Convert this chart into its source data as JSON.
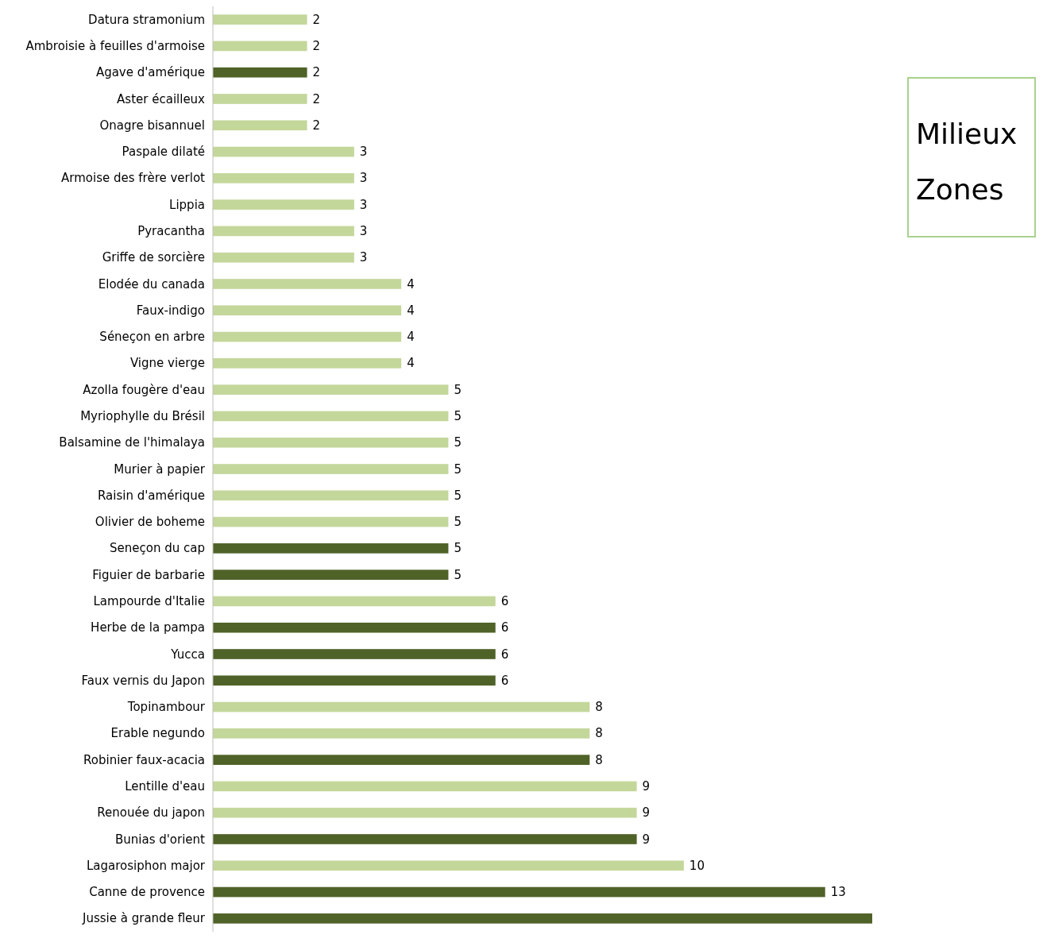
{
  "chart_data": {
    "type": "bar",
    "orientation": "horizontal",
    "categories": [
      "Datura stramonium",
      "Ambroisie à feuilles d'armoise",
      "Agave d'amérique",
      "Aster écailleux",
      "Onagre bisannuel",
      "Paspale dilaté",
      "Armoise des frère verlot",
      "Lippia",
      "Pyracantha",
      "Griffe de sorcière",
      "Elodée du canada",
      "Faux-indigo",
      "Séneçon en arbre",
      "Vigne vierge",
      "Azolla fougère d'eau",
      "Myriophylle du Brésil",
      "Balsamine de l'himalaya",
      "Murier à papier",
      "Raisin d'amérique",
      "Olivier de boheme",
      "Seneçon du cap",
      "Figuier de barbarie",
      "Lampourde d'Italie",
      "Herbe de la pampa",
      "Yucca",
      "Faux vernis du Japon",
      "Topinambour",
      "Erable negundo",
      "Robinier faux-acacia",
      "Lentille d'eau",
      "Renouée du japon",
      "Bunias d'orient",
      "Lagarosiphon major",
      "Canne de provence",
      "Jussie à grande fleur"
    ],
    "values": [
      2,
      2,
      2,
      2,
      2,
      3,
      3,
      3,
      3,
      3,
      4,
      4,
      4,
      4,
      5,
      5,
      5,
      5,
      5,
      5,
      5,
      5,
      6,
      6,
      6,
      6,
      8,
      8,
      8,
      9,
      9,
      9,
      10,
      13,
      14
    ],
    "value_labels": [
      "2",
      "2",
      "2",
      "2",
      "2",
      "3",
      "3",
      "3",
      "3",
      "3",
      "4",
      "4",
      "4",
      "4",
      "5",
      "5",
      "5",
      "5",
      "5",
      "5",
      "5",
      "5",
      "6",
      "6",
      "6",
      "6",
      "8",
      "8",
      "8",
      "9",
      "9",
      "9",
      "10",
      "13",
      null
    ],
    "colors": [
      "#c4d79b",
      "#c4d79b",
      "#4f6228",
      "#c4d79b",
      "#c4d79b",
      "#c4d79b",
      "#c4d79b",
      "#c4d79b",
      "#c4d79b",
      "#c4d79b",
      "#c4d79b",
      "#c4d79b",
      "#c4d79b",
      "#c4d79b",
      "#c4d79b",
      "#c4d79b",
      "#c4d79b",
      "#c4d79b",
      "#c4d79b",
      "#c4d79b",
      "#4f6228",
      "#4f6228",
      "#c4d79b",
      "#4f6228",
      "#4f6228",
      "#4f6228",
      "#c4d79b",
      "#c4d79b",
      "#4f6228",
      "#c4d79b",
      "#c4d79b",
      "#4f6228",
      "#c4d79b",
      "#4f6228",
      "#4f6228"
    ],
    "annotations": [
      "Milieux",
      "Zones"
    ]
  }
}
